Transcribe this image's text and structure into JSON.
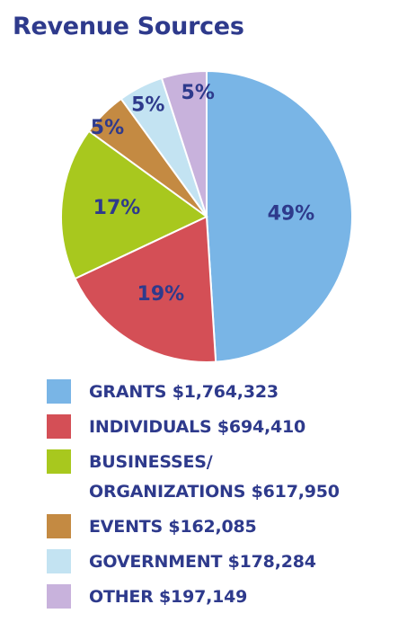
{
  "chart_data": {
    "type": "pie",
    "title": "Revenue Sources",
    "slices": [
      {
        "label": "GRANTS",
        "amount": "$1,764,323",
        "percent": 49,
        "percent_label": "49%",
        "color": "#79b5e6"
      },
      {
        "label": "INDIVIDUALS",
        "amount": "$694,410",
        "percent": 19,
        "percent_label": "19%",
        "color": "#d44f56"
      },
      {
        "label": "BUSINESSES/\nORGANIZATIONS",
        "amount": "$617,950",
        "percent": 17,
        "percent_label": "17%",
        "color": "#a8c81e"
      },
      {
        "label": "EVENTS",
        "amount": "$162,085",
        "percent": 5,
        "percent_label": "5%",
        "color": "#c48a42"
      },
      {
        "label": "GOVERNMENT",
        "amount": "$178,284",
        "percent": 5,
        "percent_label": "5%",
        "color": "#c3e3f2"
      },
      {
        "label": "OTHER",
        "amount": "$197,149",
        "percent": 5,
        "percent_label": "5%",
        "color": "#c8b2dc"
      }
    ],
    "legend_position": "bottom"
  }
}
